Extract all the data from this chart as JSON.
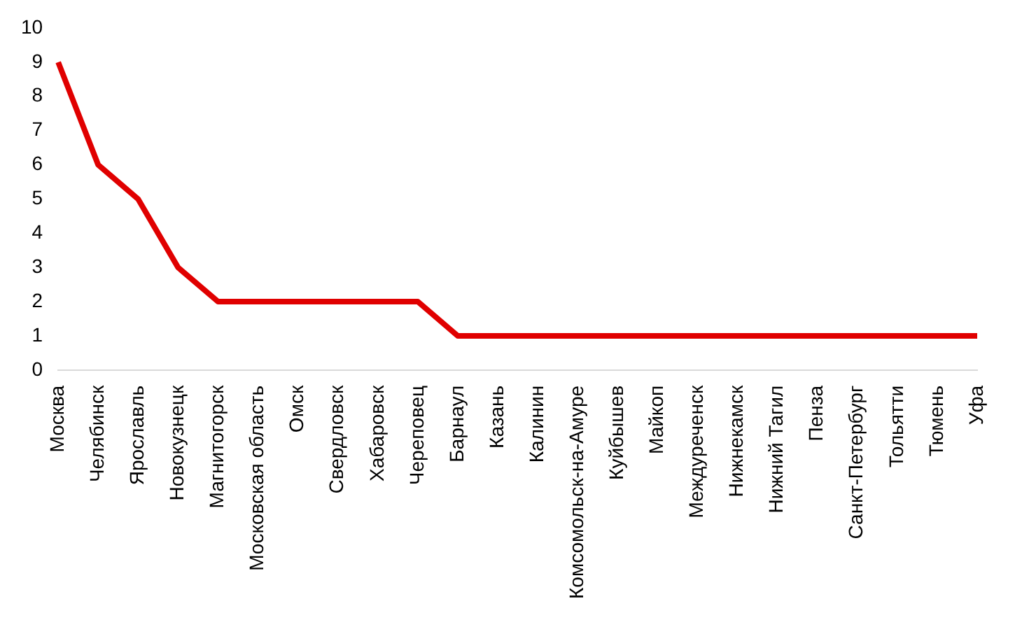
{
  "chart_data": {
    "type": "line",
    "categories": [
      "Москва",
      "Челябинск",
      "Ярославль",
      "Новокузнецк",
      "Магнитогорск",
      "Московская область",
      "Омск",
      "Свердловск",
      "Хабаровск",
      "Череповец",
      "Барнаул",
      "Казань",
      "Калинин",
      "Комсомольск-на-Амуре",
      "Куйбышев",
      "Майкоп",
      "Междуреченск",
      "Нижнекамск",
      "Нижний Тагил",
      "Пенза",
      "Санкт-Петербург",
      "Тольятти",
      "Тюмень",
      "Уфа"
    ],
    "series": [
      {
        "color": "#e00000",
        "values": [
          9,
          6,
          5,
          3,
          2,
          2,
          2,
          2,
          2,
          2,
          1,
          1,
          1,
          1,
          1,
          1,
          1,
          1,
          1,
          1,
          1,
          1,
          1,
          1
        ]
      }
    ],
    "ylim": [
      0,
      10
    ],
    "yticks": [
      0,
      1,
      2,
      3,
      4,
      5,
      6,
      7,
      8,
      9,
      10
    ],
    "grid": false,
    "legend": false,
    "marker": "none",
    "line_style": "solid"
  }
}
